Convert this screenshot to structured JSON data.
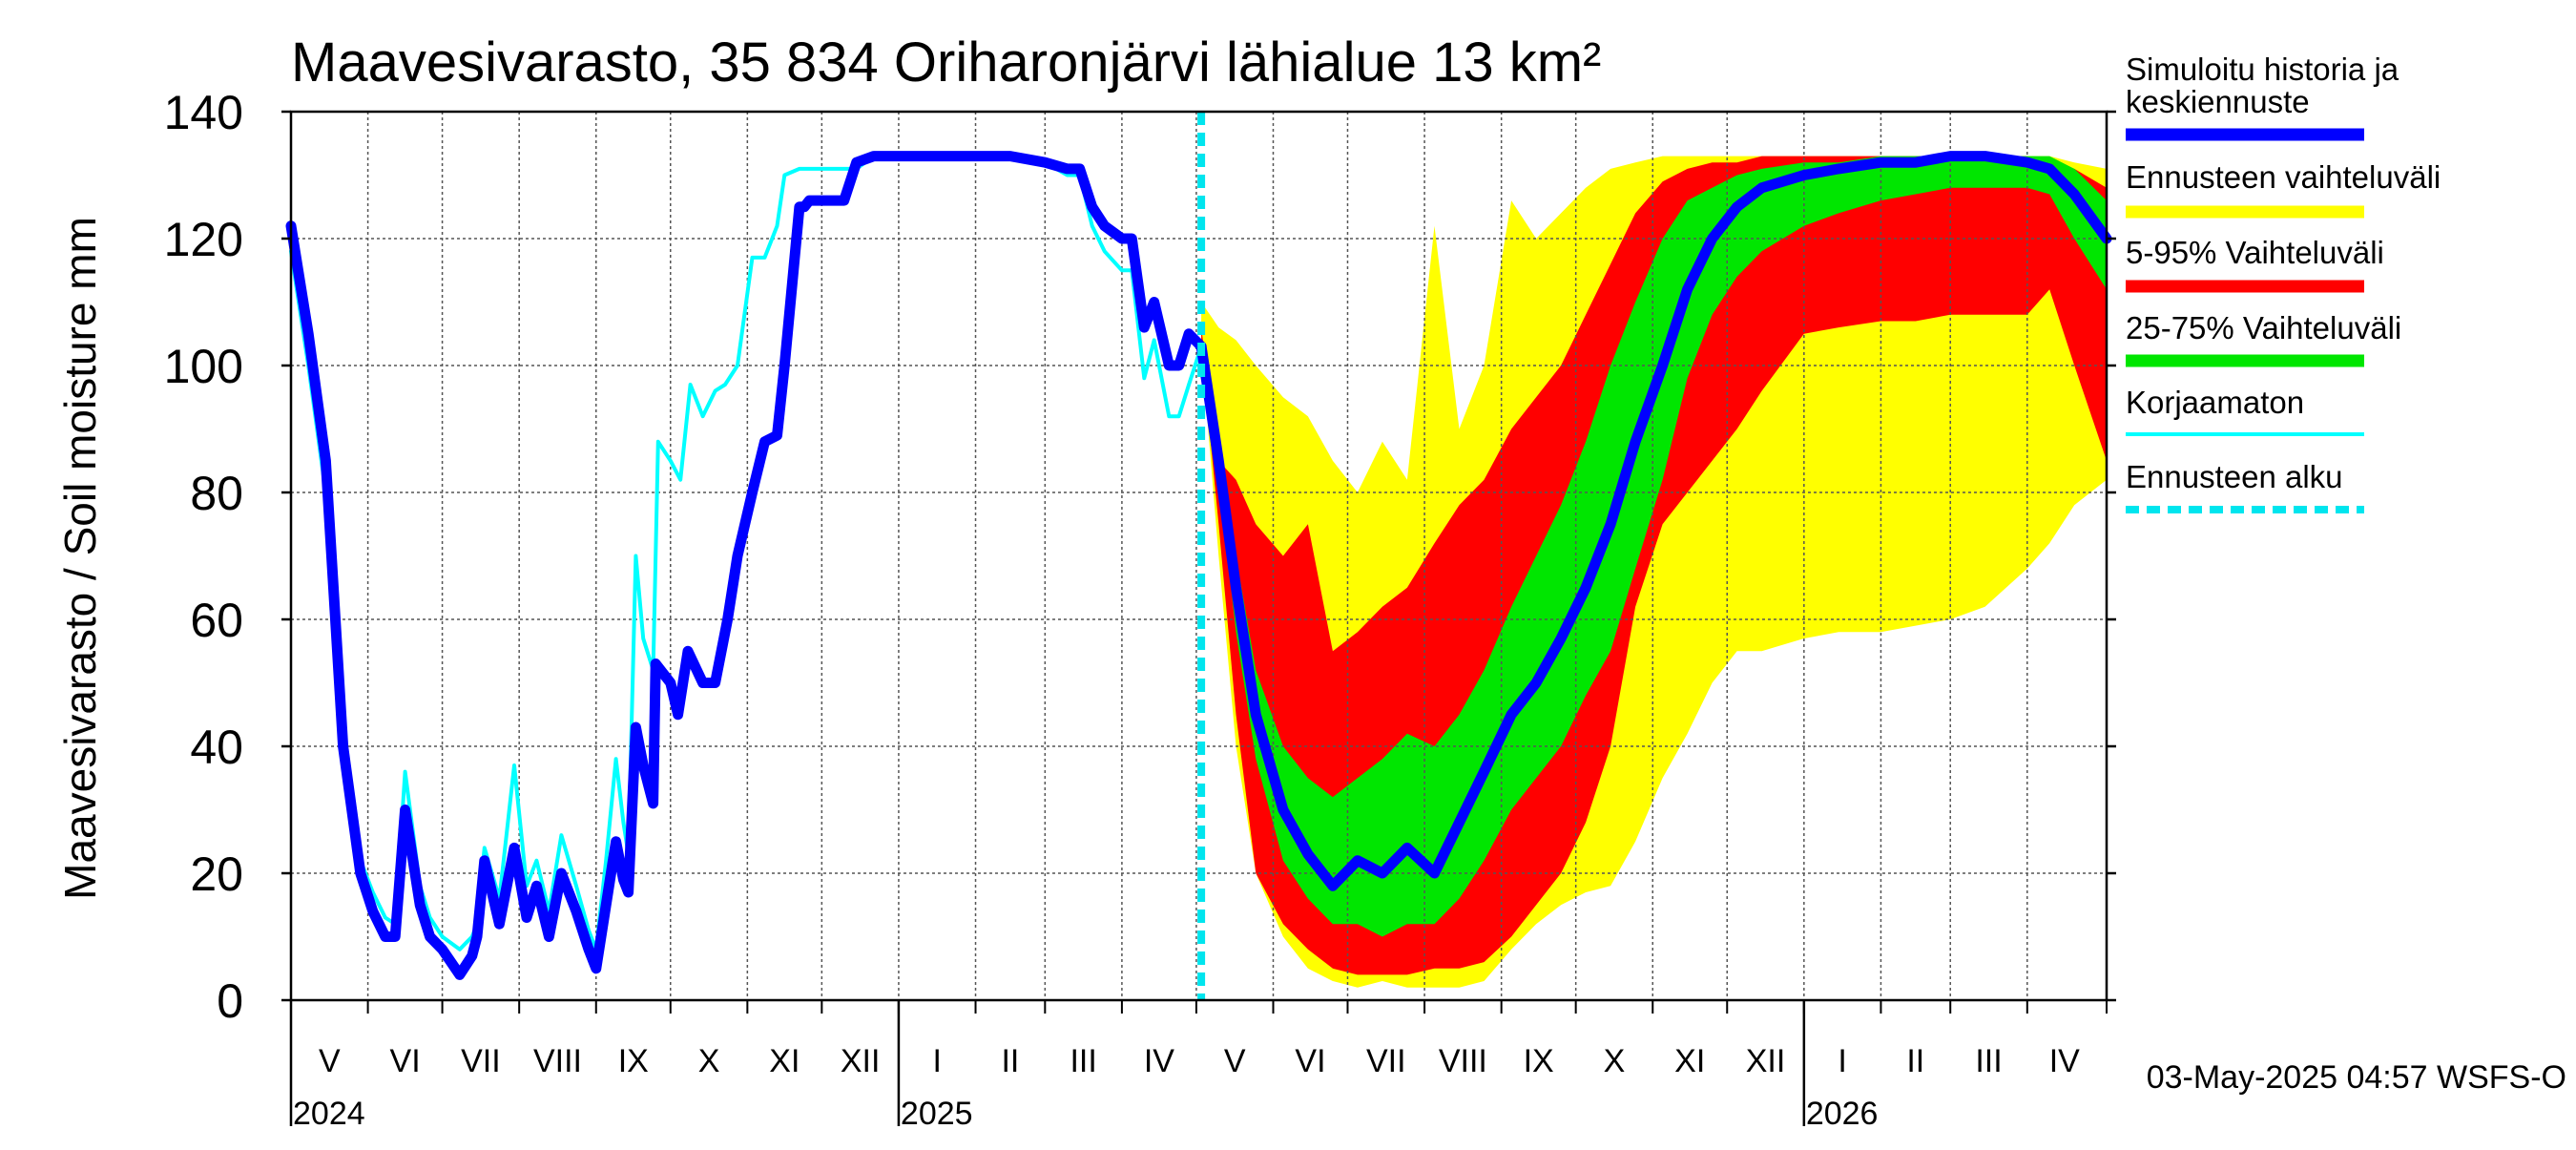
{
  "chart_data": {
    "type": "area",
    "title": "Maavesivarasto, 35 834 Oriharonjärvi lähialue 13 km²",
    "ylabel": "Maavesivarasto / Soil moisture   mm",
    "ylim": [
      0,
      140
    ],
    "yticks": [
      0,
      20,
      40,
      60,
      80,
      100,
      120,
      140
    ],
    "xlim": [
      "2024-05-01",
      "2026-05-03"
    ],
    "month_labels": [
      {
        "label": "V",
        "start": "2024-05-01",
        "end": "2024-06-01"
      },
      {
        "label": "VI",
        "start": "2024-06-01",
        "end": "2024-07-01"
      },
      {
        "label": "VII",
        "start": "2024-07-01",
        "end": "2024-08-01"
      },
      {
        "label": "VIII",
        "start": "2024-08-01",
        "end": "2024-09-01"
      },
      {
        "label": "IX",
        "start": "2024-09-01",
        "end": "2024-10-01"
      },
      {
        "label": "X",
        "start": "2024-10-01",
        "end": "2024-11-01"
      },
      {
        "label": "XI",
        "start": "2024-11-01",
        "end": "2024-12-01"
      },
      {
        "label": "XII",
        "start": "2024-12-01",
        "end": "2025-01-01"
      },
      {
        "label": "I",
        "start": "2025-01-01",
        "end": "2025-02-01"
      },
      {
        "label": "II",
        "start": "2025-02-01",
        "end": "2025-03-01"
      },
      {
        "label": "III",
        "start": "2025-03-01",
        "end": "2025-04-01"
      },
      {
        "label": "IV",
        "start": "2025-04-01",
        "end": "2025-05-01"
      },
      {
        "label": "V",
        "start": "2025-05-01",
        "end": "2025-06-01"
      },
      {
        "label": "VI",
        "start": "2025-06-01",
        "end": "2025-07-01"
      },
      {
        "label": "VII",
        "start": "2025-07-01",
        "end": "2025-08-01"
      },
      {
        "label": "VIII",
        "start": "2025-08-01",
        "end": "2025-09-01"
      },
      {
        "label": "IX",
        "start": "2025-09-01",
        "end": "2025-10-01"
      },
      {
        "label": "X",
        "start": "2025-10-01",
        "end": "2025-11-01"
      },
      {
        "label": "XI",
        "start": "2025-11-01",
        "end": "2025-12-01"
      },
      {
        "label": "XII",
        "start": "2025-12-01",
        "end": "2026-01-01"
      },
      {
        "label": "I",
        "start": "2026-01-01",
        "end": "2026-02-01"
      },
      {
        "label": "II",
        "start": "2026-02-01",
        "end": "2026-03-01"
      },
      {
        "label": "III",
        "start": "2026-03-01",
        "end": "2026-04-01"
      },
      {
        "label": "IV",
        "start": "2026-04-01",
        "end": "2026-05-01"
      }
    ],
    "year_labels": [
      {
        "label": "2024",
        "date": "2024-05-01"
      },
      {
        "label": "2025",
        "date": "2025-01-01"
      },
      {
        "label": "2026",
        "date": "2026-01-01"
      }
    ],
    "forecast_start": "2025-05-03",
    "grid": true,
    "legend_position": "right",
    "legend": [
      {
        "key": "history",
        "label_lines": [
          "Simuloitu historia ja",
          "keskiennuste"
        ],
        "color": "#0000ff",
        "style": "thick"
      },
      {
        "key": "range",
        "label_lines": [
          "Ennusteen vaihteluväli"
        ],
        "color": "#ffff00",
        "style": "band"
      },
      {
        "key": "p5_95",
        "label_lines": [
          "5-95% Vaihteluväli"
        ],
        "color": "#ff0000",
        "style": "band"
      },
      {
        "key": "p25_75",
        "label_lines": [
          "25-75% Vaihteluväli"
        ],
        "color": "#00e600",
        "style": "band"
      },
      {
        "key": "uncorrected",
        "label_lines": [
          "Korjaamaton"
        ],
        "color": "#00ffff",
        "style": "thin"
      },
      {
        "key": "forecast_start",
        "label_lines": [
          "Ennusteen alku"
        ],
        "color": "#00e5ee",
        "style": "dashed"
      }
    ],
    "footer": "03-May-2025 04:57 WSFS-O",
    "series": [
      {
        "key": "history",
        "x": [
          "2024-05-01",
          "2024-05-08",
          "2024-05-15",
          "2024-05-22",
          "2024-05-29",
          "2024-06-03",
          "2024-06-08",
          "2024-06-12",
          "2024-06-16",
          "2024-06-22",
          "2024-06-26",
          "2024-07-01",
          "2024-07-08",
          "2024-07-13",
          "2024-07-15",
          "2024-07-18",
          "2024-07-24",
          "2024-07-30",
          "2024-08-04",
          "2024-08-08",
          "2024-08-13",
          "2024-08-18",
          "2024-08-24",
          "2024-08-29",
          "2024-09-01",
          "2024-09-05",
          "2024-09-09",
          "2024-09-12",
          "2024-09-14",
          "2024-09-17",
          "2024-09-20",
          "2024-09-24",
          "2024-09-25",
          "2024-10-01",
          "2024-10-04",
          "2024-10-08",
          "2024-10-14",
          "2024-10-19",
          "2024-10-24",
          "2024-10-28",
          "2024-11-03",
          "2024-11-08",
          "2024-11-13",
          "2024-11-16",
          "2024-11-22",
          "2024-11-24",
          "2024-11-26",
          "2024-12-01",
          "2024-12-10",
          "2024-12-15",
          "2024-12-22",
          "2025-01-01",
          "2025-01-15",
          "2025-02-01",
          "2025-02-15",
          "2025-03-01",
          "2025-03-10",
          "2025-03-15",
          "2025-03-20",
          "2025-03-25",
          "2025-04-01",
          "2025-04-05",
          "2025-04-10",
          "2025-04-14",
          "2025-04-20",
          "2025-04-24",
          "2025-04-28",
          "2025-05-03"
        ],
        "values": [
          122,
          105,
          85,
          40,
          20,
          14,
          10,
          10,
          30,
          15,
          10,
          8,
          4,
          7,
          10,
          22,
          12,
          24,
          13,
          18,
          10,
          20,
          14,
          8,
          5,
          15,
          25,
          19,
          17,
          43,
          37,
          31,
          53,
          50,
          45,
          55,
          50,
          50,
          60,
          70,
          80,
          88,
          89,
          100,
          125,
          125,
          126,
          126,
          126,
          132,
          133,
          133,
          133,
          133,
          133,
          132,
          131,
          131,
          125,
          122,
          120,
          120,
          106,
          110,
          100,
          100,
          105,
          103
        ]
      },
      {
        "key": "uncorrected",
        "x": [
          "2024-05-01",
          "2024-05-08",
          "2024-05-15",
          "2024-05-22",
          "2024-05-29",
          "2024-06-03",
          "2024-06-08",
          "2024-06-12",
          "2024-06-16",
          "2024-06-22",
          "2024-06-26",
          "2024-07-01",
          "2024-07-08",
          "2024-07-13",
          "2024-07-15",
          "2024-07-18",
          "2024-07-24",
          "2024-07-30",
          "2024-08-04",
          "2024-08-08",
          "2024-08-13",
          "2024-08-18",
          "2024-08-24",
          "2024-08-29",
          "2024-09-01",
          "2024-09-05",
          "2024-09-09",
          "2024-09-12",
          "2024-09-14",
          "2024-09-17",
          "2024-09-20",
          "2024-09-24",
          "2024-09-26",
          "2024-10-01",
          "2024-10-05",
          "2024-10-09",
          "2024-10-14",
          "2024-10-19",
          "2024-10-23",
          "2024-10-28",
          "2024-11-03",
          "2024-11-08",
          "2024-11-13",
          "2024-11-16",
          "2024-11-22",
          "2024-11-24",
          "2024-11-26",
          "2024-12-01",
          "2024-12-10",
          "2024-12-15",
          "2024-12-22",
          "2025-01-01",
          "2025-01-15",
          "2025-02-01",
          "2025-02-15",
          "2025-03-01",
          "2025-03-10",
          "2025-03-15",
          "2025-03-20",
          "2025-03-25",
          "2025-04-01",
          "2025-04-05",
          "2025-04-10",
          "2025-04-14",
          "2025-04-20",
          "2025-04-24",
          "2025-04-28",
          "2025-05-03"
        ],
        "values": [
          118,
          100,
          80,
          38,
          22,
          17,
          13,
          12,
          36,
          18,
          13,
          10,
          8,
          10,
          12,
          24,
          16,
          37,
          18,
          22,
          14,
          26,
          18,
          11,
          8,
          22,
          38,
          28,
          23,
          70,
          57,
          52,
          88,
          85,
          82,
          97,
          92,
          96,
          97,
          100,
          117,
          117,
          122,
          130,
          131,
          131,
          131,
          131,
          131,
          131,
          133,
          133,
          133,
          133,
          133,
          132,
          130,
          130,
          122,
          118,
          115,
          115,
          98,
          104,
          92,
          92,
          97,
          103
        ]
      },
      {
        "key": "forecast_median",
        "x": [
          "2025-05-03",
          "2025-05-10",
          "2025-05-17",
          "2025-05-25",
          "2025-06-05",
          "2025-06-15",
          "2025-06-25",
          "2025-07-05",
          "2025-07-15",
          "2025-07-25",
          "2025-08-05",
          "2025-08-15",
          "2025-08-25",
          "2025-09-05",
          "2025-09-15",
          "2025-09-25",
          "2025-10-05",
          "2025-10-15",
          "2025-10-25",
          "2025-11-05",
          "2025-11-15",
          "2025-11-25",
          "2025-12-05",
          "2025-12-15",
          "2026-01-01",
          "2026-01-15",
          "2026-02-01",
          "2026-02-15",
          "2026-03-01",
          "2026-03-15",
          "2026-04-01",
          "2026-04-10",
          "2026-04-20",
          "2026-05-03"
        ],
        "values": [
          103,
          85,
          65,
          45,
          30,
          23,
          18,
          22,
          20,
          24,
          20,
          28,
          36,
          45,
          50,
          57,
          65,
          75,
          88,
          100,
          112,
          120,
          125,
          128,
          130,
          131,
          132,
          132,
          133,
          133,
          132,
          131,
          127,
          120
        ]
      },
      {
        "key": "band_max",
        "x": [
          "2025-05-03",
          "2025-05-10",
          "2025-05-17",
          "2025-05-25",
          "2025-06-05",
          "2025-06-15",
          "2025-06-25",
          "2025-07-05",
          "2025-07-15",
          "2025-07-25",
          "2025-08-05",
          "2025-08-15",
          "2025-08-25",
          "2025-09-05",
          "2025-09-15",
          "2025-09-25",
          "2025-10-05",
          "2025-10-15",
          "2025-10-25",
          "2025-11-05",
          "2025-11-15",
          "2025-11-25",
          "2025-12-05",
          "2025-12-15",
          "2026-01-01",
          "2026-01-15",
          "2026-02-01",
          "2026-02-15",
          "2026-03-01",
          "2026-03-15",
          "2026-04-01",
          "2026-04-10",
          "2026-04-20",
          "2026-05-03"
        ],
        "values": [
          110,
          106,
          104,
          100,
          95,
          92,
          85,
          80,
          88,
          82,
          122,
          90,
          100,
          126,
          120,
          124,
          128,
          131,
          132,
          133,
          133,
          133,
          133,
          133,
          133,
          133,
          133,
          133,
          133,
          133,
          133,
          133,
          132,
          131
        ]
      },
      {
        "key": "band_min",
        "x": [
          "2025-05-03",
          "2025-05-10",
          "2025-05-17",
          "2025-05-25",
          "2025-06-05",
          "2025-06-15",
          "2025-06-25",
          "2025-07-05",
          "2025-07-15",
          "2025-07-25",
          "2025-08-05",
          "2025-08-15",
          "2025-08-25",
          "2025-09-05",
          "2025-09-15",
          "2025-09-25",
          "2025-10-05",
          "2025-10-15",
          "2025-10-25",
          "2025-11-05",
          "2025-11-15",
          "2025-11-25",
          "2025-12-05",
          "2025-12-15",
          "2026-01-01",
          "2026-01-15",
          "2026-02-01",
          "2026-02-15",
          "2026-03-01",
          "2026-03-15",
          "2026-04-01",
          "2026-04-10",
          "2026-04-20",
          "2026-05-03"
        ],
        "values": [
          103,
          70,
          40,
          20,
          10,
          5,
          3,
          2,
          3,
          2,
          2,
          2,
          3,
          8,
          12,
          15,
          17,
          18,
          25,
          35,
          42,
          50,
          55,
          55,
          57,
          58,
          58,
          59,
          60,
          62,
          68,
          72,
          78,
          82
        ]
      },
      {
        "key": "p95",
        "x": [
          "2025-05-03",
          "2025-05-10",
          "2025-05-17",
          "2025-05-25",
          "2025-06-05",
          "2025-06-15",
          "2025-06-25",
          "2025-07-05",
          "2025-07-15",
          "2025-07-25",
          "2025-08-05",
          "2025-08-15",
          "2025-08-25",
          "2025-09-05",
          "2025-09-15",
          "2025-09-25",
          "2025-10-05",
          "2025-10-15",
          "2025-10-25",
          "2025-11-05",
          "2025-11-15",
          "2025-11-25",
          "2025-12-05",
          "2025-12-15",
          "2026-01-01",
          "2026-01-15",
          "2026-02-01",
          "2026-02-15",
          "2026-03-01",
          "2026-03-15",
          "2026-04-01",
          "2026-04-10",
          "2026-04-20",
          "2026-05-03"
        ],
        "values": [
          106,
          85,
          82,
          75,
          70,
          75,
          55,
          58,
          62,
          65,
          72,
          78,
          82,
          90,
          95,
          100,
          108,
          116,
          124,
          129,
          131,
          132,
          132,
          133,
          133,
          133,
          133,
          133,
          133,
          133,
          133,
          132,
          131,
          128
        ]
      },
      {
        "key": "p5",
        "x": [
          "2025-05-03",
          "2025-05-10",
          "2025-05-17",
          "2025-05-25",
          "2025-06-05",
          "2025-06-15",
          "2025-06-25",
          "2025-07-05",
          "2025-07-15",
          "2025-07-25",
          "2025-08-05",
          "2025-08-15",
          "2025-08-25",
          "2025-09-05",
          "2025-09-15",
          "2025-09-25",
          "2025-10-05",
          "2025-10-15",
          "2025-10-25",
          "2025-11-05",
          "2025-11-15",
          "2025-11-25",
          "2025-12-05",
          "2025-12-15",
          "2026-01-01",
          "2026-01-15",
          "2026-02-01",
          "2026-02-15",
          "2026-03-01",
          "2026-03-15",
          "2026-04-01",
          "2026-04-10",
          "2026-04-20",
          "2026-05-03"
        ],
        "values": [
          103,
          75,
          45,
          20,
          12,
          8,
          5,
          4,
          4,
          4,
          5,
          5,
          6,
          10,
          15,
          20,
          28,
          40,
          62,
          75,
          80,
          85,
          90,
          96,
          105,
          106,
          107,
          107,
          108,
          108,
          108,
          112,
          100,
          85
        ]
      },
      {
        "key": "p75",
        "x": [
          "2025-05-03",
          "2025-05-10",
          "2025-05-17",
          "2025-05-25",
          "2025-06-05",
          "2025-06-15",
          "2025-06-25",
          "2025-07-05",
          "2025-07-15",
          "2025-07-25",
          "2025-08-05",
          "2025-08-15",
          "2025-08-25",
          "2025-09-05",
          "2025-09-15",
          "2025-09-25",
          "2025-10-05",
          "2025-10-15",
          "2025-10-25",
          "2025-11-05",
          "2025-11-15",
          "2025-11-25",
          "2025-12-05",
          "2025-12-15",
          "2026-01-01",
          "2026-01-15",
          "2026-02-01",
          "2026-02-15",
          "2026-03-01",
          "2026-03-15",
          "2026-04-01",
          "2026-04-10",
          "2026-04-20",
          "2026-05-03"
        ],
        "values": [
          104,
          88,
          70,
          52,
          40,
          35,
          32,
          35,
          38,
          42,
          40,
          45,
          52,
          62,
          70,
          78,
          88,
          100,
          110,
          120,
          126,
          128,
          130,
          131,
          132,
          132,
          133,
          133,
          133,
          133,
          133,
          133,
          131,
          126
        ]
      },
      {
        "key": "p25",
        "x": [
          "2025-05-03",
          "2025-05-10",
          "2025-05-17",
          "2025-05-25",
          "2025-06-05",
          "2025-06-15",
          "2025-06-25",
          "2025-07-05",
          "2025-07-15",
          "2025-07-25",
          "2025-08-05",
          "2025-08-15",
          "2025-08-25",
          "2025-09-05",
          "2025-09-15",
          "2025-09-25",
          "2025-10-05",
          "2025-10-15",
          "2025-10-25",
          "2025-11-05",
          "2025-11-15",
          "2025-11-25",
          "2025-12-05",
          "2025-12-15",
          "2026-01-01",
          "2026-01-15",
          "2026-02-01",
          "2026-02-15",
          "2026-03-01",
          "2026-03-15",
          "2026-04-01",
          "2026-04-10",
          "2026-04-20",
          "2026-05-03"
        ],
        "values": [
          103,
          82,
          58,
          38,
          22,
          16,
          12,
          12,
          10,
          12,
          12,
          16,
          22,
          30,
          35,
          40,
          48,
          55,
          68,
          82,
          98,
          108,
          114,
          118,
          122,
          124,
          126,
          127,
          128,
          128,
          128,
          127,
          120,
          112
        ]
      }
    ]
  }
}
